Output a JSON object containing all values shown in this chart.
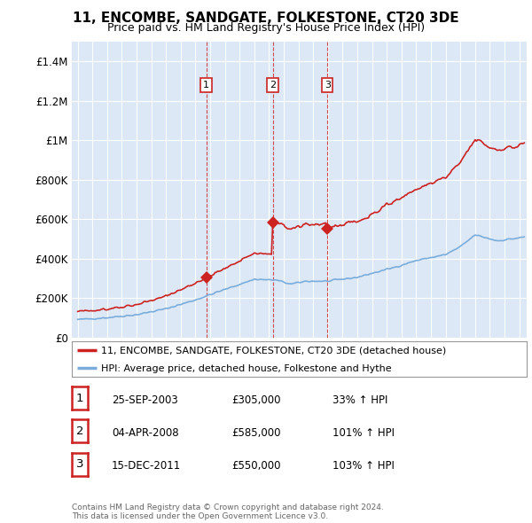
{
  "title": "11, ENCOMBE, SANDGATE, FOLKESTONE, CT20 3DE",
  "subtitle": "Price paid vs. HM Land Registry's House Price Index (HPI)",
  "xlim": [
    1994.6,
    2025.5
  ],
  "ylim": [
    0,
    1500000
  ],
  "yticks": [
    0,
    200000,
    400000,
    600000,
    800000,
    1000000,
    1200000,
    1400000
  ],
  "ytick_labels": [
    "£0",
    "£200K",
    "£400K",
    "£600K",
    "£800K",
    "£1M",
    "£1.2M",
    "£1.4M"
  ],
  "xticks": [
    1995,
    1996,
    1997,
    1998,
    1999,
    2000,
    2001,
    2002,
    2003,
    2004,
    2005,
    2006,
    2007,
    2008,
    2009,
    2010,
    2011,
    2012,
    2013,
    2014,
    2015,
    2016,
    2017,
    2018,
    2019,
    2020,
    2021,
    2022,
    2023,
    2024,
    2025
  ],
  "hpi_color": "#7aaddb",
  "sale_color": "#cc2222",
  "vline_color": "#cc2222",
  "transactions": [
    {
      "year": 2003.73,
      "price": 305000,
      "label": "1"
    },
    {
      "year": 2008.25,
      "price": 585000,
      "label": "2"
    },
    {
      "year": 2011.96,
      "price": 550000,
      "label": "3"
    }
  ],
  "legend_entries": [
    {
      "label": "11, ENCOMBE, SANDGATE, FOLKESTONE, CT20 3DE (detached house)",
      "color": "#cc2222"
    },
    {
      "label": "HPI: Average price, detached house, Folkestone and Hythe",
      "color": "#7aaddb"
    }
  ],
  "table_rows": [
    {
      "num": "1",
      "date": "25-SEP-2003",
      "price": "£305,000",
      "hpi": "33% ↑ HPI"
    },
    {
      "num": "2",
      "date": "04-APR-2008",
      "price": "£585,000",
      "hpi": "101% ↑ HPI"
    },
    {
      "num": "3",
      "date": "15-DEC-2011",
      "price": "£550,000",
      "hpi": "103% ↑ HPI"
    }
  ],
  "footer1": "Contains HM Land Registry data © Crown copyright and database right 2024.",
  "footer2": "This data is licensed under the Open Government Licence v3.0.",
  "bg_color": "#ffffff",
  "plot_bg_color": "#dce8f5",
  "grid_color": "#ffffff"
}
